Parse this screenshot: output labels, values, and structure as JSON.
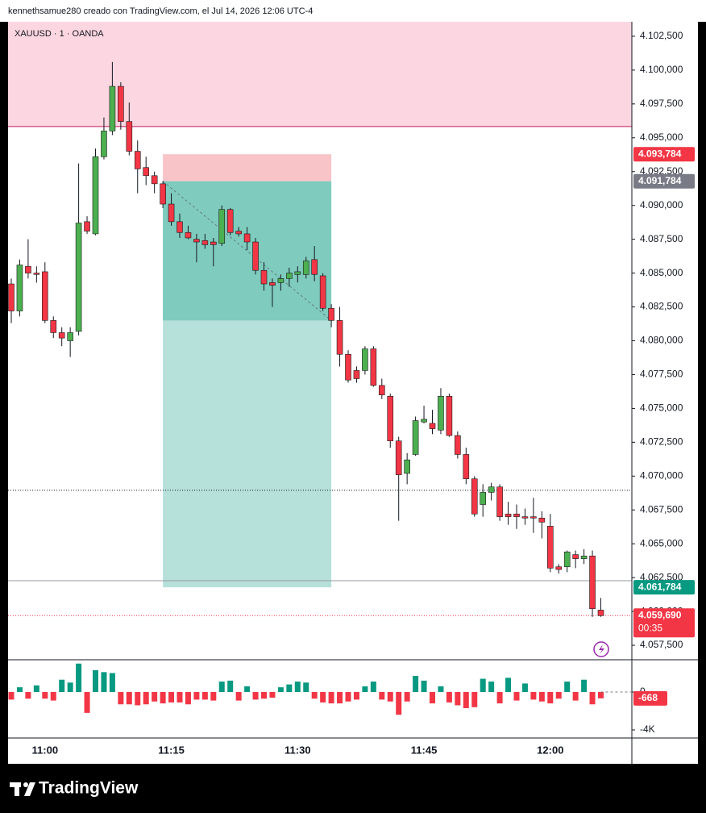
{
  "header": "kennethsamue280 creado con TradingView.com, el Jul 14, 2026 12:06 UTC-4",
  "chart_data": [
    {
      "type": "candlestick",
      "title": "XAUUSD · 1 · OANDA",
      "categories": [
        null,
        null,
        null,
        null,
        "11:00",
        null,
        null,
        null,
        null,
        null,
        null,
        null,
        null,
        null,
        null,
        null,
        null,
        null,
        null,
        "11:15",
        null,
        null,
        null,
        null,
        null,
        null,
        null,
        null,
        null,
        null,
        null,
        null,
        null,
        null,
        "11:30",
        null,
        null,
        null,
        null,
        null,
        null,
        null,
        null,
        null,
        null,
        null,
        null,
        null,
        null,
        "11:45",
        null,
        null,
        null,
        null,
        null,
        null,
        null,
        null,
        null,
        null,
        null,
        null,
        null,
        null,
        "12:00",
        null,
        null,
        null,
        null,
        null,
        null
      ],
      "open": [
        4084.2,
        4082.2,
        4085.5,
        4085.0,
        4085.1,
        4081.5,
        4080.6,
        4080.0,
        4080.7,
        4088.8,
        4087.9,
        4093.6,
        4095.5,
        4098.8,
        4096.2,
        4094.0,
        4092.8,
        4092.2,
        4091.6,
        4090.1,
        4088.8,
        4088.0,
        4087.5,
        4087.4,
        4087.3,
        4087.2,
        4089.7,
        4088.1,
        4087.9,
        4087.3,
        4085.2,
        4084.3,
        4084.3,
        4084.6,
        4084.9,
        4084.9,
        4086.0,
        4084.8,
        4082.4,
        4081.5,
        4079.0,
        4077.8,
        4077.8,
        4079.4,
        4076.7,
        4075.9,
        4072.6,
        4070.2,
        4071.6,
        4074.0,
        4073.9,
        4073.4,
        4075.9,
        4073.0,
        4071.6,
        4069.8,
        4067.9,
        4068.8,
        4069.2,
        4067.2,
        4067.2,
        4067.0,
        4067.0,
        4066.9,
        4066.3,
        4063.3,
        4063.3,
        4064.2,
        4063.9,
        4064.1,
        4060.1
      ],
      "high": [
        4084.6,
        4086.0,
        4087.5,
        4085.5,
        4085.8,
        4081.8,
        4081.0,
        4081.0,
        4093.1,
        4089.2,
        4094.2,
        4096.5,
        4100.6,
        4099.1,
        4097.6,
        4094.8,
        4093.6,
        4092.5,
        4091.8,
        4090.9,
        4089.4,
        4088.5,
        4087.9,
        4087.9,
        4087.6,
        4090.0,
        4089.8,
        4088.4,
        4088.4,
        4087.6,
        4085.8,
        4084.6,
        4084.9,
        4085.4,
        4085.5,
        4086.2,
        4087.0,
        4085.0,
        4082.7,
        4082.5,
        4079.3,
        4078.1,
        4079.6,
        4079.6,
        4077.2,
        4076.1,
        4072.9,
        4071.7,
        4074.4,
        4075.2,
        4074.9,
        4076.5,
        4076.1,
        4073.3,
        4072.1,
        4070.0,
        4069.4,
        4069.5,
        4069.4,
        4068.1,
        4067.9,
        4067.6,
        4068.4,
        4067.4,
        4067.2,
        4063.5,
        4064.5,
        4064.5,
        4064.6,
        4064.5,
        4061.0
      ],
      "low": [
        4081.3,
        4081.8,
        4084.6,
        4084.3,
        4081.3,
        4080.2,
        4079.6,
        4078.8,
        4080.4,
        4087.9,
        4087.8,
        4093.4,
        4095.2,
        4095.6,
        4093.7,
        4090.9,
        4091.5,
        4090.9,
        4089.8,
        4088.5,
        4087.6,
        4087.5,
        4085.8,
        4086.8,
        4085.5,
        4087.0,
        4087.8,
        4087.7,
        4086.7,
        4084.9,
        4083.7,
        4082.5,
        4083.7,
        4084.0,
        4084.3,
        4084.6,
        4084.4,
        4082.2,
        4081.0,
        4078.1,
        4076.9,
        4076.9,
        4077.5,
        4076.6,
        4075.7,
        4072.1,
        4066.7,
        4069.4,
        4071.5,
        4073.9,
        4073.1,
        4073.1,
        4072.9,
        4071.3,
        4069.4,
        4067.0,
        4067.0,
        4068.2,
        4066.7,
        4066.4,
        4066.1,
        4066.4,
        4065.8,
        4065.4,
        4062.9,
        4062.8,
        4062.9,
        4063.2,
        4063.5,
        4059.6,
        4059.6
      ],
      "close": [
        4082.2,
        4085.6,
        4085.0,
        4084.9,
        4081.5,
        4080.6,
        4080.2,
        4080.6,
        4088.7,
        4088.1,
        4093.6,
        4095.5,
        4098.8,
        4096.2,
        4094.0,
        4092.7,
        4092.2,
        4091.6,
        4090.1,
        4088.8,
        4088.0,
        4087.6,
        4087.3,
        4087.1,
        4087.1,
        4089.7,
        4088.0,
        4087.9,
        4087.3,
        4085.2,
        4084.2,
        4084.1,
        4084.6,
        4085.0,
        4085.1,
        4085.9,
        4084.9,
        4082.4,
        4081.5,
        4079.0,
        4077.1,
        4077.2,
        4079.4,
        4076.7,
        4076.0,
        4072.6,
        4070.1,
        4071.2,
        4074.1,
        4074.2,
        4073.5,
        4075.9,
        4073.0,
        4071.6,
        4069.8,
        4067.2,
        4068.8,
        4069.2,
        4067.0,
        4067.0,
        4067.0,
        4066.9,
        4066.9,
        4066.6,
        4063.2,
        4063.1,
        4064.4,
        4063.9,
        4064.1,
        4060.2,
        4059.69
      ],
      "up_color": "#4caf50",
      "down_color": "#f23645",
      "ylim": [
        4056.43,
        4103.57
      ],
      "yticks": [
        {
          "value": 4057.5,
          "label": "4.057,500"
        },
        {
          "value": 4060,
          "label": "4.060,000"
        },
        {
          "value": 4062.5,
          "label": "4.062,500"
        },
        {
          "value": 4065,
          "label": "4.065,000"
        },
        {
          "value": 4067.5,
          "label": "4.067,500"
        },
        {
          "value": 4070,
          "label": "4.070,000"
        },
        {
          "value": 4072.5,
          "label": "4.072,500"
        },
        {
          "value": 4075,
          "label": "4.075,000"
        },
        {
          "value": 4077.5,
          "label": "4.077,500"
        },
        {
          "value": 4080,
          "label": "4.080,000"
        },
        {
          "value": 4082.5,
          "label": "4.082,500"
        },
        {
          "value": 4085,
          "label": "4.085,000"
        },
        {
          "value": 4087.5,
          "label": "4.087,500"
        },
        {
          "value": 4090,
          "label": "4.090,000"
        },
        {
          "value": 4092.5,
          "label": "4.092,500"
        },
        {
          "value": 4095,
          "label": "4.095,000"
        },
        {
          "value": 4097.5,
          "label": "4.097,500"
        },
        {
          "value": 4100,
          "label": "4.100,000"
        },
        {
          "value": 4102.5,
          "label": "4.102,500"
        }
      ],
      "zone": {
        "from": 4095.83,
        "color": "#fcd6e0"
      },
      "hlines": [
        {
          "value": 4095.83,
          "color": "#c2185b",
          "style": "solid"
        },
        {
          "value": 4068.95,
          "color": "#131722",
          "style": "dotted"
        },
        {
          "value": 4062.27,
          "color": "#9598a1",
          "style": "solid"
        }
      ],
      "position": {
        "start": 18,
        "end": 38
      },
      "price_labels": [
        {
          "value": 4093.784,
          "label": "4.093,784",
          "color": "#f23645"
        },
        {
          "value": 4091.784,
          "label": "4.091,784",
          "color": "#787b86"
        },
        {
          "value": 4061.784,
          "label": "4.061,784",
          "color": "#089981"
        },
        {
          "value": 4059.69,
          "label": "4.059,690",
          "color": "#f23645",
          "countdown": "00:35"
        }
      ]
    },
    {
      "type": "bar",
      "values": [
        -800,
        500,
        -700,
        700,
        -700,
        -900,
        1300,
        1000,
        3000,
        -2200,
        2300,
        2100,
        2000,
        -1300,
        -1300,
        -1400,
        -1300,
        -1000,
        -1200,
        -1100,
        -1100,
        -1300,
        -800,
        -800,
        -900,
        1100,
        1200,
        -900,
        600,
        -800,
        -700,
        -600,
        500,
        800,
        1100,
        1000,
        -700,
        -1100,
        -1200,
        -1200,
        -1000,
        -800,
        600,
        1100,
        -800,
        -1000,
        -2400,
        -1000,
        1700,
        1200,
        -1200,
        600,
        -1100,
        -1400,
        -1700,
        -1600,
        1400,
        1100,
        -1200,
        1500,
        -900,
        900,
        -800,
        -1000,
        -1200,
        -700,
        1100,
        -900,
        1300,
        -1300,
        -668
      ],
      "up_color": "#089981",
      "down_color": "#f23645",
      "ylim": [
        -4851,
        3404
      ],
      "yticks": [
        0,
        {
          "value": -4000,
          "label": "-4K"
        }
      ]
    }
  ],
  "footer": {
    "brand": "TradingView"
  }
}
